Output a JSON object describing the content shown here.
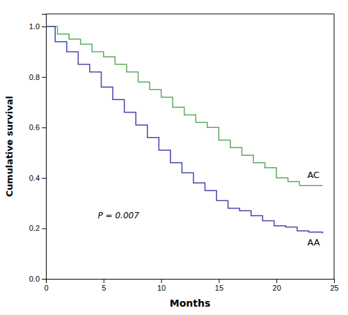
{
  "chart_data": {
    "type": "step",
    "xlabel": "Months",
    "ylabel": "Cumulative survival",
    "xlim": [
      0,
      25
    ],
    "ylim": [
      0.0,
      1.05
    ],
    "xticks": [
      0,
      5,
      10,
      15,
      20,
      25
    ],
    "yticks": [
      {
        "value": 0.0,
        "label": "0.0"
      },
      0.2,
      0.4,
      0.6,
      0.8,
      {
        "value": 1.0,
        "label": "1.0"
      }
    ],
    "series": [
      {
        "name": "AC",
        "color": "#5aaa5a",
        "x": [
          0,
          1,
          2,
          3,
          4,
          5,
          6,
          7,
          8,
          9,
          10,
          11,
          12,
          13,
          14,
          15,
          16,
          17,
          18,
          19,
          20,
          21,
          22,
          24
        ],
        "values": [
          1.0,
          0.97,
          0.95,
          0.93,
          0.9,
          0.88,
          0.85,
          0.82,
          0.78,
          0.75,
          0.72,
          0.68,
          0.65,
          0.62,
          0.6,
          0.55,
          0.52,
          0.49,
          0.46,
          0.44,
          0.4,
          0.385,
          0.37,
          0.37
        ]
      },
      {
        "name": "AA",
        "color": "#4444aa",
        "x": [
          0,
          0.8,
          1.8,
          2.8,
          3.8,
          4.8,
          5.8,
          6.8,
          7.8,
          8.8,
          9.8,
          10.8,
          11.8,
          12.8,
          13.8,
          14.8,
          15.8,
          16.8,
          17.8,
          18.8,
          19.8,
          20.8,
          21.8,
          22.8,
          24
        ],
        "values": [
          1.0,
          0.94,
          0.9,
          0.85,
          0.82,
          0.76,
          0.71,
          0.66,
          0.61,
          0.56,
          0.51,
          0.46,
          0.42,
          0.38,
          0.35,
          0.31,
          0.28,
          0.27,
          0.25,
          0.23,
          0.21,
          0.205,
          0.19,
          0.185,
          0.18
        ]
      }
    ],
    "annotations": [
      {
        "text": "P = 0.007",
        "x": 4.5,
        "y": 0.24
      }
    ]
  }
}
